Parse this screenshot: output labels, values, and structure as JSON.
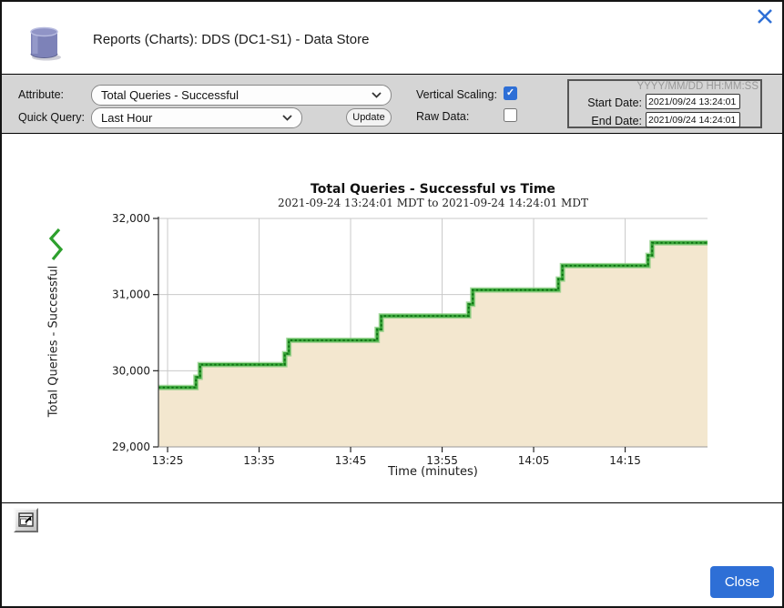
{
  "window": {
    "title": "Reports (Charts): DDS (DC1-S1) - Data Store",
    "accent_blue": "#2e6fd6",
    "icons": {
      "header": "database-cylinder",
      "close": "close-x"
    }
  },
  "toolbar": {
    "attribute_label": "Attribute:",
    "attribute_value": "Total Queries - Successful",
    "quick_query_label": "Quick Query:",
    "quick_query_value": "Last Hour",
    "update_label": "Update",
    "vertical_scaling_label": "Vertical Scaling:",
    "vertical_scaling_checked": true,
    "raw_data_label": "Raw Data:",
    "raw_data_checked": false,
    "date_format_hint": "YYYY/MM/DD HH:MM:SS",
    "start_date_label": "Start Date:",
    "start_date_value": "2021/09/24 13:24:01",
    "end_date_label": "End Date:",
    "end_date_value": "2021/09/24 14:24:01"
  },
  "chart_data": {
    "type": "area",
    "title": "Total Queries - Successful vs Time",
    "subtitle": "2021-09-24 13:24:01 MDT to 2021-09-24 14:24:01 MDT",
    "xlabel": "Time (minutes)",
    "ylabel": "Total Queries - Successful",
    "x_start_time": "13:24:01",
    "x_end_time": "14:24:01",
    "xlim_minutes": [
      0,
      60
    ],
    "ylim": [
      29000,
      32000
    ],
    "grid": true,
    "legend_position": "left-of-ylabel",
    "line_color": "#3aa73a",
    "line_dot_color": "#0d6e12",
    "line_halo_color": "#85cb7c",
    "fill_color": "#f3e7cf",
    "grid_color": "#c9c9c9",
    "xticks": [
      {
        "label": "13:25",
        "minute": 1
      },
      {
        "label": "13:35",
        "minute": 11
      },
      {
        "label": "13:45",
        "minute": 21
      },
      {
        "label": "13:55",
        "minute": 31
      },
      {
        "label": "14:05",
        "minute": 41
      },
      {
        "label": "14:15",
        "minute": 51
      }
    ],
    "yticks": [
      {
        "label": "29,000",
        "value": 29000
      },
      {
        "label": "30,000",
        "value": 30000
      },
      {
        "label": "31,000",
        "value": 31000
      },
      {
        "label": "32,000",
        "value": 32000
      }
    ],
    "series": [
      {
        "name": "Total Queries - Successful",
        "mode": "step-after",
        "points_minutes_value": [
          [
            0,
            29780
          ],
          [
            4.1,
            30080
          ],
          [
            13.8,
            30400
          ],
          [
            23.9,
            30720
          ],
          [
            33.9,
            31060
          ],
          [
            43.7,
            31380
          ],
          [
            53.5,
            31680
          ],
          [
            60,
            31680
          ]
        ]
      }
    ]
  },
  "footer": {
    "popout_icon": "open-in-new-window",
    "close_label": "Close"
  }
}
